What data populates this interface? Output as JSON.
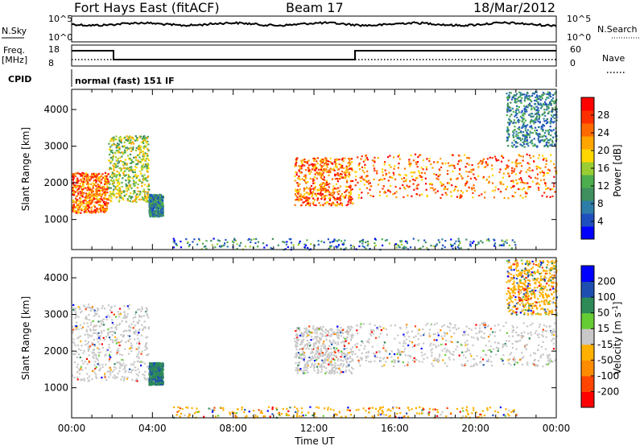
{
  "header": {
    "station": "Fort Hays East (fitACF)",
    "beam": "Beam 17",
    "date": "18/Mar/2012"
  },
  "panels": {
    "nsky_label": "N.Sky",
    "nsearch_label": "N.Search",
    "nsky_ticks": [
      "10^5",
      "10^0"
    ],
    "nsearch_ticks": [
      "10^5",
      "10^0"
    ],
    "freq_label_top": "Freq.",
    "freq_label_bottom": "[MHz]",
    "freq_ticks": [
      "18",
      "8"
    ],
    "nave_label": "Nave",
    "nave_ticks": [
      "60",
      "0"
    ],
    "cpid_label": "CPID",
    "cpid_text": "normal (fast) 151 IF"
  },
  "chart_data": [
    {
      "type": "heatmap",
      "title": "",
      "ylabel": "Slant Range [km]",
      "xlabel": "",
      "x_ticks": [
        "00:00",
        "04:00",
        "08:00",
        "12:00",
        "16:00",
        "20:00",
        "00:00"
      ],
      "y_ticks": [
        "1000",
        "2000",
        "3000",
        "4000"
      ],
      "ylim": [
        180,
        4550
      ],
      "xlim_hours": [
        0,
        24
      ],
      "colorbar": {
        "label": "Power [dB]",
        "ticks": [
          "28",
          "24",
          "20",
          "16",
          "12",
          "8",
          "4"
        ],
        "range": [
          0,
          32
        ],
        "colors": [
          "#0000ff",
          "#1f4fbf",
          "#2e7da8",
          "#3f8f5f",
          "#4cae4c",
          "#9acd32",
          "#ffd700",
          "#ffa500",
          "#ff6a00",
          "#ff3000",
          "#ff0000"
        ]
      },
      "scatter_regions": [
        {
          "t0": 0.0,
          "t1": 1.8,
          "r0": 1200,
          "r1": 2300,
          "level": "strong"
        },
        {
          "t0": 1.8,
          "t1": 3.8,
          "r0": 1500,
          "r1": 3300,
          "level": "medium"
        },
        {
          "t0": 3.8,
          "t1": 4.5,
          "r0": 1100,
          "r1": 1700,
          "level": "weak"
        },
        {
          "t0": 11.0,
          "t1": 13.9,
          "r0": 1400,
          "r1": 2700,
          "level": "strong"
        },
        {
          "t0": 14.0,
          "t1": 24.0,
          "r0": 1600,
          "r1": 2800,
          "level": "strong"
        },
        {
          "t0": 21.5,
          "t1": 24.0,
          "r0": 3000,
          "r1": 4500,
          "level": "weak"
        },
        {
          "t0": 5.0,
          "t1": 22.0,
          "r0": 200,
          "r1": 500,
          "level": "ground"
        }
      ]
    },
    {
      "type": "heatmap",
      "title": "",
      "ylabel": "Slant Range [km]",
      "xlabel": "Time UT",
      "x_ticks": [
        "00:00",
        "04:00",
        "08:00",
        "12:00",
        "16:00",
        "20:00",
        "00:00"
      ],
      "y_ticks": [
        "1000",
        "2000",
        "3000",
        "4000"
      ],
      "ylim": [
        180,
        4550
      ],
      "xlim_hours": [
        0,
        24
      ],
      "colorbar": {
        "label": "Velocity [m s^-1]",
        "ticks": [
          "200",
          "100",
          "50",
          "15",
          "-15",
          "-50",
          "-100",
          "-200"
        ],
        "range": [
          -250,
          250
        ],
        "colors": [
          "#ff0000",
          "#ff4500",
          "#ff8c00",
          "#ffb000",
          "#c8c8c8",
          "#66cc33",
          "#2e8b57",
          "#1e4fb0",
          "#0000ff"
        ]
      },
      "scatter_regions": [
        {
          "t0": 0.0,
          "t1": 3.8,
          "r0": 1200,
          "r1": 3300,
          "level": "gray"
        },
        {
          "t0": 3.8,
          "t1": 4.5,
          "r0": 1100,
          "r1": 1700,
          "level": "green"
        },
        {
          "t0": 11.0,
          "t1": 13.9,
          "r0": 1400,
          "r1": 2700,
          "level": "gray"
        },
        {
          "t0": 14.0,
          "t1": 24.0,
          "r0": 1600,
          "r1": 2800,
          "level": "gray"
        },
        {
          "t0": 21.5,
          "t1": 24.0,
          "r0": 3000,
          "r1": 4500,
          "level": "orange"
        },
        {
          "t0": 5.0,
          "t1": 22.0,
          "r0": 200,
          "r1": 500,
          "level": "orange"
        }
      ]
    }
  ]
}
